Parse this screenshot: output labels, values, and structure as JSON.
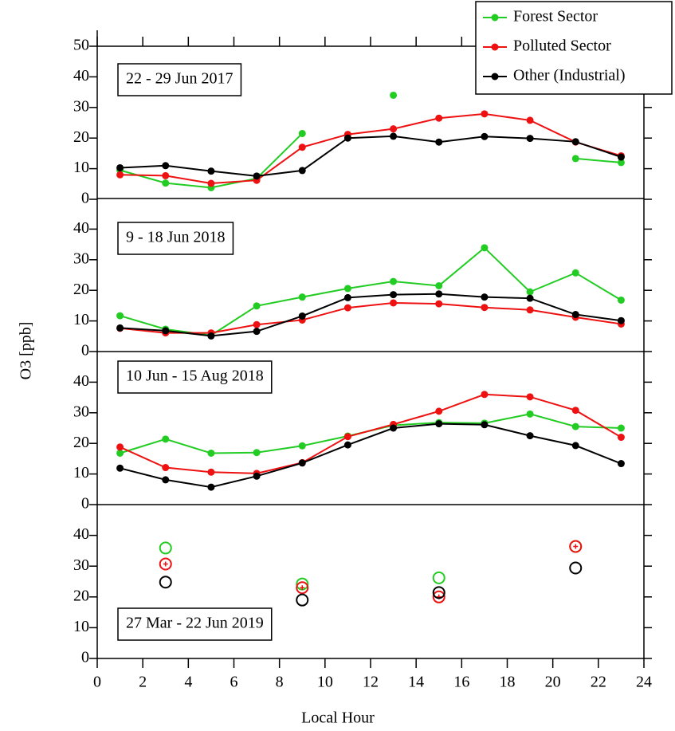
{
  "xlabel": "Local Hour",
  "ylabel": "O3 [ppb]",
  "chart_data": [
    {
      "type": "line",
      "title": "22 - 29 Jun 2017",
      "x": [
        1,
        3,
        5,
        7,
        9,
        11,
        13,
        15,
        17,
        19,
        21,
        23
      ],
      "series": [
        {
          "name": "Forest Sector",
          "color": "#22cc22",
          "values": [
            9.5,
            5.3,
            3.8,
            6.8,
            21.5,
            null,
            34,
            null,
            null,
            null,
            13.3,
            12
          ]
        },
        {
          "name": "Polluted Sector",
          "color": "#ee1111",
          "values": [
            8,
            7.7,
            5.2,
            6.2,
            17,
            21.2,
            23,
            26.5,
            27.9,
            25.8,
            18.7,
            14.2
          ]
        },
        {
          "name": "Other (Industrial)",
          "color": "#000000",
          "values": [
            10.3,
            11,
            9.2,
            7.6,
            9.4,
            20,
            20.6,
            18.7,
            20.5,
            19.9,
            18.8,
            13.8
          ]
        }
      ],
      "ylim": [
        0,
        50
      ],
      "yticks": [
        0,
        10,
        20,
        30,
        40,
        50
      ],
      "xlim": [
        0,
        24
      ]
    },
    {
      "type": "line",
      "title": "9 - 18 Jun 2018",
      "x": [
        1,
        3,
        5,
        7,
        9,
        11,
        13,
        15,
        17,
        19,
        21,
        23
      ],
      "series": [
        {
          "values": [
            11.7,
            7.3,
            5.3,
            14.9,
            17.8,
            20.6,
            22.9,
            21.5,
            33.9,
            19.5,
            25.7,
            16.8
          ]
        },
        {
          "values": [
            7.6,
            6.1,
            6.1,
            8.8,
            10.3,
            14.3,
            15.9,
            15.6,
            14.4,
            13.6,
            11.2,
            9
          ]
        },
        {
          "values": [
            7.7,
            6.8,
            5.1,
            6.6,
            11.6,
            17.6,
            18.6,
            18.8,
            17.8,
            17.4,
            12.1,
            10.1
          ]
        }
      ],
      "ylim": [
        0,
        50
      ],
      "yticks": [
        0,
        10,
        20,
        30,
        40
      ],
      "xlim": [
        0,
        24
      ]
    },
    {
      "type": "line",
      "title": "10 Jun - 15 Aug 2018",
      "x": [
        1,
        3,
        5,
        7,
        9,
        11,
        13,
        15,
        17,
        19,
        21,
        23
      ],
      "series": [
        {
          "values": [
            16.8,
            21.4,
            16.8,
            17,
            19.2,
            22.4,
            25.9,
            26.8,
            26.6,
            29.6,
            25.5,
            25
          ]
        },
        {
          "values": [
            18.8,
            12.1,
            10.6,
            10.2,
            13.7,
            22.2,
            26.2,
            30.5,
            36,
            35.2,
            30.8,
            22
          ]
        },
        {
          "values": [
            11.9,
            8.1,
            5.7,
            9.3,
            13.6,
            19.5,
            25,
            26.4,
            26.1,
            22.5,
            19.3,
            13.4
          ]
        }
      ],
      "ylim": [
        0,
        50
      ],
      "yticks": [
        0,
        10,
        20,
        30,
        40
      ],
      "xlim": [
        0,
        24
      ]
    },
    {
      "type": "scatter",
      "title": "27 Mar - 22 Jun 2019",
      "x": [
        3,
        9,
        15,
        21
      ],
      "series": [
        {
          "values": [
            35.9,
            24.2,
            26.2,
            36.4
          ]
        },
        {
          "values": [
            30.7,
            23,
            20,
            36.4
          ]
        },
        {
          "values": [
            24.8,
            19,
            21.4,
            29.4
          ]
        }
      ],
      "ylim": [
        0,
        50
      ],
      "yticks": [
        0,
        10,
        20,
        30,
        40
      ],
      "xlim": [
        0,
        24
      ],
      "xticks": [
        0,
        2,
        4,
        6,
        8,
        10,
        12,
        14,
        16,
        18,
        20,
        22,
        24
      ]
    }
  ]
}
